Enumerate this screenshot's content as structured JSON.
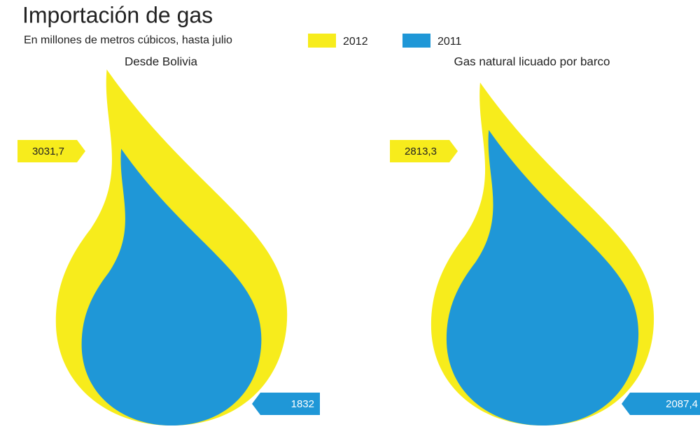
{
  "chart_data": {
    "type": "flame",
    "title": "Importación de gas",
    "subtitle": "En millones de metros cúbicos, hasta julio",
    "categories": [
      "Desde Bolivia",
      "Gas natural licuado por barco"
    ],
    "series": [
      {
        "name": "2012",
        "color": "#f7ec1c",
        "values": [
          3031.7,
          2813.3
        ],
        "value_labels": [
          "3031,7",
          "2813,3"
        ]
      },
      {
        "name": "2011",
        "color": "#1f97d7",
        "values": [
          1832,
          2087.4
        ],
        "value_labels": [
          "1832",
          "2087,4"
        ]
      }
    ]
  }
}
